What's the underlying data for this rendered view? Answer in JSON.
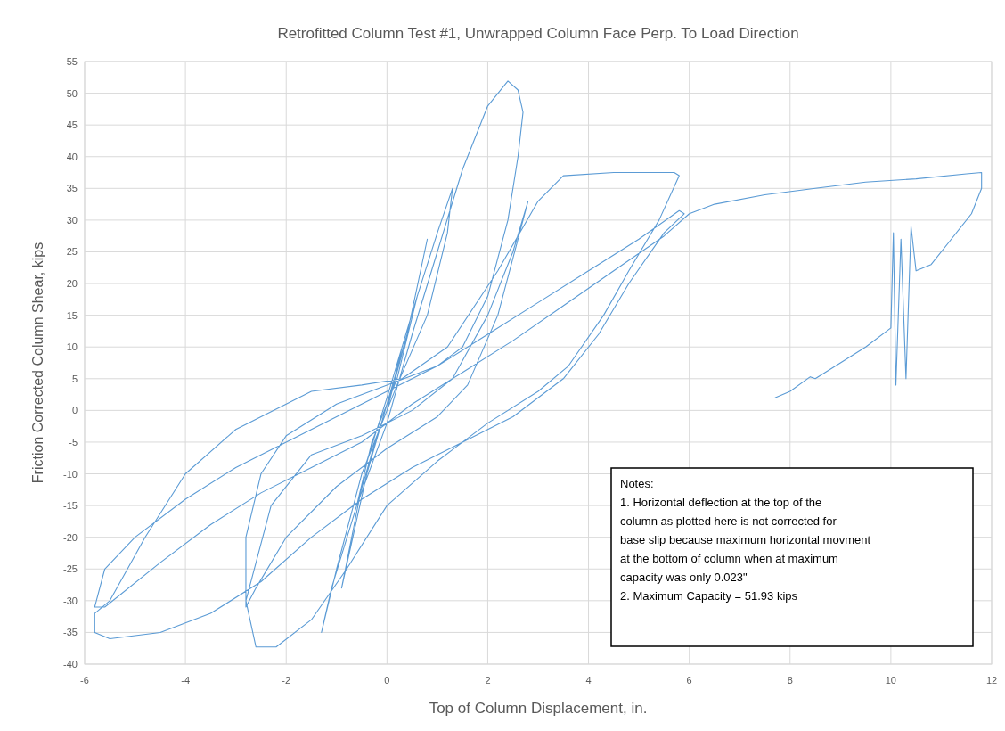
{
  "chart_data": {
    "type": "line",
    "title": "Retrofitted Column Test #1, Unwrapped Column Face Perp. To Load Direction",
    "xlabel": "Top of Column Displacement, in.",
    "ylabel": "Friction Corrected Column Shear, kips",
    "xlim": [
      -6,
      12
    ],
    "xticks": [
      -6,
      -4,
      -2,
      0,
      2,
      4,
      6,
      8,
      10,
      12
    ],
    "ylim": [
      -40,
      55
    ],
    "yticks": [
      -40,
      -35,
      -30,
      -25,
      -20,
      -15,
      -10,
      -5,
      0,
      5,
      10,
      15,
      20,
      25,
      30,
      35,
      40,
      45,
      50,
      55
    ],
    "grid": true,
    "series": [
      {
        "color": "#5b9bd5",
        "x": [
          0,
          0.3,
          0.6,
          0.2,
          -0.3,
          -0.6,
          -0.2,
          0,
          0.4,
          0.8,
          0.4,
          -0.4,
          -0.9,
          -0.4,
          0,
          0.6,
          1.0,
          1.3,
          1.2,
          0.8,
          0.2,
          -0.5,
          -1.0,
          -1.3,
          -1.1,
          -0.6,
          0,
          0.5,
          1.0,
          1.5,
          2.0,
          2.4,
          2.6,
          2.7,
          2.6,
          2.4,
          2.0,
          1.5,
          1.0,
          0,
          -1,
          -2,
          -2.5,
          -2.8,
          -2.8,
          -2.6,
          -2,
          -1,
          0,
          1,
          1.6,
          2.2,
          2.8,
          2.5,
          2.0,
          1.3,
          0.5,
          -0.5,
          -1.5,
          -2.3,
          -2.8,
          -2.6,
          -2.2,
          -1.5,
          -0.8,
          0,
          1,
          2,
          3,
          3.6,
          4.3,
          4.8,
          5.4,
          5.8,
          5.7,
          4.5,
          3.5,
          3,
          2.2,
          1.2,
          0.3,
          -0.5,
          -1.5,
          -3,
          -4,
          -4.8,
          -5.5,
          -5.8,
          -5.8,
          -5.5,
          -4.5,
          -3.5,
          -2.5,
          -1.5,
          -0.5,
          0.5,
          1.5,
          2.5,
          3.5,
          4.2,
          4.8,
          5.5,
          5.9,
          5.8,
          5,
          4,
          3,
          2,
          1,
          0,
          -1,
          -2,
          -3,
          -4,
          -5,
          -5.6,
          -5.8,
          -5.6,
          -4.5,
          -3.5,
          -2.5,
          -1.5,
          -0.5,
          0.5,
          1.5,
          2.5,
          3.5,
          4.5,
          5.5,
          6,
          6.5,
          7.5,
          8.5,
          9.5,
          10.5,
          11.5,
          11.8,
          11.8,
          11.6,
          11.2,
          10.8,
          10.5,
          10.4,
          10.3,
          10.2,
          10.1,
          10.05,
          10.0,
          9.5,
          9,
          8.5,
          8.4,
          8,
          7.7
        ],
        "values": [
          0,
          10,
          18,
          5,
          -5,
          -15,
          -4,
          0,
          12,
          27,
          12,
          -10,
          -28,
          -8,
          2,
          18,
          28,
          35,
          28,
          15,
          4,
          -10,
          -25,
          -35,
          -28,
          -15,
          -2,
          12,
          25,
          38,
          48,
          51.93,
          50.5,
          47,
          40,
          30,
          18,
          10,
          7,
          4,
          1,
          -4,
          -10,
          -20,
          -31,
          -28,
          -20,
          -12,
          -6,
          -1,
          4,
          15,
          33,
          25,
          15,
          5,
          0,
          -4,
          -7,
          -15,
          -30,
          -37.3,
          -37.3,
          -33,
          -25,
          -15,
          -8,
          -2,
          3,
          7,
          15,
          22,
          30,
          37,
          37.5,
          37.5,
          37,
          33,
          22,
          10,
          5,
          4,
          3,
          -3,
          -10,
          -20,
          -30,
          -32,
          -35,
          -36,
          -35,
          -32,
          -27,
          -20,
          -14,
          -9,
          -5,
          -1,
          5,
          12,
          20,
          28,
          31,
          31.5,
          27,
          22,
          17,
          12,
          7,
          3,
          -1,
          -5,
          -9,
          -14,
          -20,
          -25,
          -31,
          -31,
          -24,
          -18,
          -13,
          -9,
          -5,
          1,
          6,
          11,
          16.5,
          22,
          27.5,
          31,
          32.5,
          34,
          35,
          36,
          36.5,
          37.3,
          37.5,
          35,
          31,
          27,
          23,
          22,
          29,
          5,
          27,
          4,
          28,
          13,
          10,
          7.5,
          5,
          5.3,
          3,
          2
        ]
      }
    ],
    "annotations": [
      "Notes:",
      "1.  Horizontal deflection at the top of the column as plotted here is not corrected for base slip because maximum horizontal movment at the bottom of column when at maximum capacity was only 0.023\"",
      "2. Maximum Capacity = 51.93 kips"
    ]
  }
}
